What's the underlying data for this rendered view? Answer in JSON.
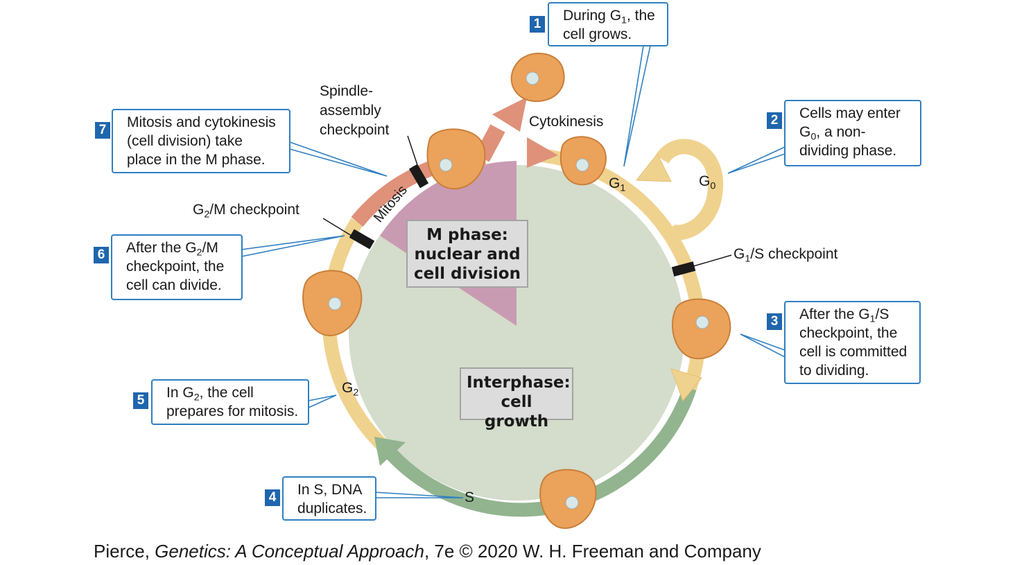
{
  "center": {
    "m_phase_line1": "M phase:",
    "m_phase_line2": "nuclear and",
    "m_phase_line3": "cell division",
    "interphase_line1": "Interphase:",
    "interphase_line2": "cell growth"
  },
  "phases": {
    "mitosis": "Mitosis",
    "cytokinesis": "Cytokinesis",
    "g1": "G",
    "g1_sub": "1",
    "g0": "G",
    "g0_sub": "0",
    "g2": "G",
    "g2_sub": "2",
    "s": "S"
  },
  "checkpoints": {
    "spindle_line1": "Spindle-",
    "spindle_line2": "assembly",
    "spindle_line3": "checkpoint",
    "g2m_pre": "G",
    "g2m_sub": "2",
    "g2m_post": "/M checkpoint",
    "g1s_pre": "G",
    "g1s_sub": "1",
    "g1s_post": "/S checkpoint"
  },
  "callouts": [
    {
      "num": "1",
      "p1": "During G",
      "sub": "1",
      "p2": ", the",
      "line2": "cell grows."
    },
    {
      "num": "2",
      "line1": "Cells may enter",
      "p1": "G",
      "sub": "0",
      "p2": ", a non-",
      "line3": "dividing phase."
    },
    {
      "num": "3",
      "p1": "After the G",
      "sub": "1",
      "p2": "/S",
      "line2": "checkpoint, the",
      "line3": "cell is committed",
      "line4": "to dividing."
    },
    {
      "num": "4",
      "line1": "In S, DNA",
      "line2": "duplicates."
    },
    {
      "num": "5",
      "p1": "In G",
      "sub": "2",
      "p2": ", the cell",
      "line2": "prepares for mitosis."
    },
    {
      "num": "6",
      "p1": "After the G",
      "sub": "2",
      "p2": "/M",
      "line2": "checkpoint, the",
      "line3": "cell can divide."
    },
    {
      "num": "7",
      "line1": "Mitosis and cytokinesis",
      "line2": "(cell division) take",
      "line3": "place in the M phase."
    }
  ],
  "footer": {
    "pre": "Pierce, ",
    "title": "Genetics: A Conceptual Approach",
    "post": ", 7e © 2020 W. H. Freeman and Company"
  },
  "colors": {
    "interphase_fill": "#d4dccb",
    "m_phase_fill": "#c99bb2",
    "g_arc": "#f0d28f",
    "s_arc": "#92b48f",
    "mitosis_arc": "#df917a",
    "cell": "#eba25a",
    "callout_border": "#2f7fc1",
    "badge": "#1f66ad"
  }
}
